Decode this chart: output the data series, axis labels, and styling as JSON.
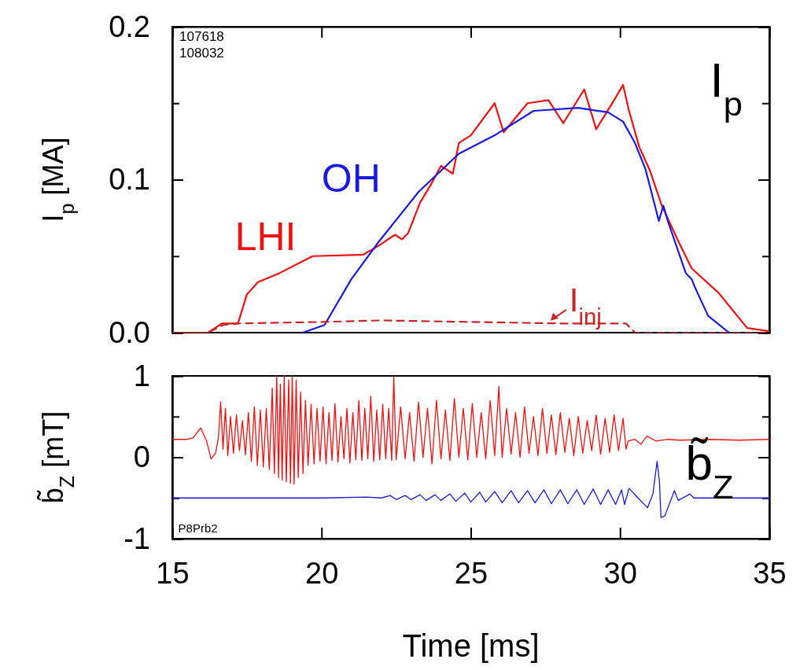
{
  "chart_data": [
    {
      "type": "line",
      "ylabel": "I$_{p}$ [MA]",
      "xlim": [
        15,
        35
      ],
      "xticks": [
        15,
        20,
        25,
        30,
        35
      ],
      "ylim": [
        0,
        0.2
      ],
      "yticks": [
        {
          "value": 0,
          "label": "0.0"
        },
        {
          "value": 0.05,
          "label": null
        },
        {
          "value": 0.1,
          "label": "0.1"
        },
        {
          "value": 0.15,
          "label": null
        },
        {
          "value": 0.2,
          "label": "0.2"
        }
      ],
      "tick_labels": "y",
      "marker": "none",
      "annotations": [
        "107618",
        "108032",
        "I$_{p}$"
      ],
      "series": [
        {
          "name": "LHI",
          "color": "#ee1111",
          "line_style": "solid",
          "x": [
            15,
            16.2,
            16.66,
            17.2,
            17.5,
            17.87,
            18.6,
            19.3,
            19.7,
            21.4,
            21.93,
            22.46,
            22.7,
            22.9,
            23.3,
            23.67,
            24.0,
            24.4,
            24.6,
            25.0,
            25.8,
            26.1,
            26.9,
            27.6,
            28.1,
            28.8,
            29.2,
            29.8,
            30.1,
            30.3,
            30.65,
            31.0,
            31.4,
            31.97,
            32.4,
            33.3,
            33.8,
            34.26,
            35
          ],
          "values": [
            0,
            0,
            0.006,
            0.006,
            0.025,
            0.033,
            0.039,
            0.046,
            0.05,
            0.051,
            0.057,
            0.064,
            0.061,
            0.065,
            0.085,
            0.097,
            0.109,
            0.104,
            0.124,
            0.129,
            0.15,
            0.131,
            0.15,
            0.152,
            0.137,
            0.159,
            0.133,
            0.152,
            0.162,
            0.145,
            0.121,
            0.106,
            0.083,
            0.059,
            0.042,
            0.026,
            0.014,
            0.003,
            0.001
          ]
        },
        {
          "name": "OH",
          "color": "#1a1adf",
          "line_style": "solid",
          "x": [
            19.37,
            20.1,
            21.0,
            21.9,
            23.25,
            24.6,
            25.8,
            27.1,
            28.6,
            29.6,
            30.1,
            30.5,
            30.85,
            31.3,
            31.45,
            31.6,
            32.2,
            32.4,
            32.5,
            32.95,
            33.65
          ],
          "values": [
            0,
            0.005,
            0.035,
            0.059,
            0.092,
            0.117,
            0.129,
            0.145,
            0.147,
            0.144,
            0.138,
            0.124,
            0.107,
            0.073,
            0.083,
            0.073,
            0.039,
            0.035,
            0.03,
            0.011,
            0
          ]
        },
        {
          "name": "I$_{inj}$",
          "color": "#cc2222",
          "line_style": "dashed",
          "x": [
            15,
            16.2,
            16.7,
            17.2,
            20,
            22,
            25,
            28,
            30.2,
            30.5,
            35
          ],
          "values": [
            0,
            0,
            0.005,
            0.006,
            0.007,
            0.008,
            0.007,
            0.006,
            0.006,
            0,
            0
          ]
        }
      ]
    },
    {
      "type": "line",
      "ylabel": "b̃$_{Z}$ [mT]",
      "xlabel": "Time [ms]",
      "xlim": [
        15,
        35
      ],
      "xticks": [
        15,
        20,
        25,
        30,
        35
      ],
      "ylim": [
        -1,
        1
      ],
      "yticks": [
        -1,
        {
          "value": -0.5,
          "label": null
        },
        0,
        {
          "value": 0.5,
          "label": null
        },
        1
      ],
      "marker": "none",
      "annotations": [
        "b̃$_{Z}$",
        "P8Prb2"
      ],
      "series": [
        {
          "color": "#ee1111",
          "line_style": "solid",
          "x": [
            15.0,
            15.5,
            15.7,
            15.95,
            16.15,
            16.3,
            16.45,
            16.55,
            16.62,
            16.7,
            16.78,
            16.86,
            16.95,
            17.05,
            17.15,
            17.25,
            17.35,
            17.45,
            17.55,
            17.65,
            17.75,
            17.85,
            17.95,
            18.05,
            18.15,
            18.25,
            18.35,
            18.42,
            18.5,
            18.56,
            18.62,
            18.68,
            18.75,
            18.82,
            18.9,
            18.96,
            19.02,
            19.08,
            19.15,
            19.22,
            19.3,
            19.38,
            19.46,
            19.55,
            19.65,
            19.75,
            19.85,
            19.95,
            20.05,
            20.15,
            20.25,
            20.35,
            20.45,
            20.55,
            20.65,
            20.75,
            20.85,
            20.95,
            21.05,
            21.15,
            21.25,
            21.35,
            21.45,
            21.55,
            21.65,
            21.75,
            21.85,
            21.95,
            22.05,
            22.15,
            22.25,
            22.35,
            22.42,
            22.5,
            22.65,
            22.8,
            22.95,
            23.1,
            23.25,
            23.4,
            23.55,
            23.7,
            23.85,
            24.0,
            24.15,
            24.3,
            24.45,
            24.6,
            24.75,
            24.9,
            25.05,
            25.2,
            25.35,
            25.5,
            25.65,
            25.8,
            25.94,
            26.05,
            26.2,
            26.35,
            26.5,
            26.65,
            26.8,
            26.95,
            27.1,
            27.25,
            27.4,
            27.55,
            27.7,
            27.85,
            28.0,
            28.15,
            28.3,
            28.45,
            28.6,
            28.75,
            28.9,
            29.05,
            29.2,
            29.35,
            29.5,
            29.65,
            29.8,
            29.95,
            30.1,
            30.2,
            30.27,
            30.5,
            30.7,
            30.9,
            31.2,
            31.6,
            32,
            33,
            34,
            35
          ],
          "values": [
            0.22,
            0.22,
            0.24,
            0.36,
            0.2,
            -0.02,
            0.05,
            0.25,
            0.68,
            0.1,
            0.6,
            0.02,
            0.5,
            0.05,
            0.52,
            0.08,
            0.45,
            0.03,
            0.55,
            -0.05,
            0.62,
            -0.1,
            0.58,
            -0.12,
            0.6,
            -0.15,
            0.85,
            -0.2,
            1.0,
            -0.25,
            0.9,
            -0.28,
            1.0,
            -0.3,
            0.95,
            -0.32,
            1.0,
            -0.33,
            0.95,
            -0.25,
            0.8,
            -0.2,
            0.7,
            -0.1,
            0.65,
            -0.08,
            0.6,
            -0.05,
            0.62,
            -0.08,
            0.55,
            -0.04,
            0.66,
            -0.06,
            0.5,
            -0.02,
            0.6,
            -0.07,
            0.55,
            -0.03,
            0.7,
            -0.04,
            0.6,
            -0.02,
            0.75,
            -0.05,
            0.58,
            -0.03,
            0.65,
            -0.02,
            0.6,
            -0.04,
            0.99,
            -0.03,
            0.62,
            -0.02,
            0.55,
            -0.05,
            0.68,
            0.0,
            0.6,
            -0.08,
            0.7,
            -0.02,
            0.58,
            -0.04,
            0.72,
            0.0,
            0.6,
            -0.03,
            0.66,
            0.0,
            0.55,
            -0.02,
            0.7,
            0.02,
            0.87,
            0.0,
            0.6,
            0.04,
            0.55,
            0.0,
            0.62,
            0.05,
            0.5,
            0.02,
            0.6,
            0.05,
            0.52,
            0.03,
            0.55,
            0.06,
            0.48,
            0.02,
            0.5,
            0.05,
            0.45,
            0.08,
            0.52,
            0.04,
            0.48,
            0.06,
            0.52,
            0.08,
            0.48,
            0.1,
            0.2,
            0.22,
            0.16,
            0.26,
            0.2,
            0.22,
            0.21,
            0.22,
            0.21,
            0.22
          ]
        },
        {
          "color": "#1a1adf",
          "line_style": "solid",
          "x": [
            15,
            18,
            20,
            21.5,
            22.0,
            22.3,
            22.5,
            22.8,
            23.0,
            23.3,
            23.5,
            23.8,
            24.0,
            24.3,
            24.5,
            24.8,
            25.0,
            25.3,
            25.5,
            25.8,
            26.05,
            26.35,
            26.6,
            26.9,
            27.15,
            27.45,
            27.7,
            28.0,
            28.25,
            28.55,
            28.8,
            29.1,
            29.35,
            29.6,
            29.85,
            30.05,
            30.15,
            30.3,
            30.6,
            30.92,
            31.1,
            31.24,
            31.32,
            31.37,
            31.5,
            31.82,
            31.95,
            32.2,
            32.34,
            32.47,
            33,
            35
          ],
          "values": [
            -0.5,
            -0.5,
            -0.5,
            -0.49,
            -0.5,
            -0.47,
            -0.52,
            -0.47,
            -0.52,
            -0.46,
            -0.53,
            -0.46,
            -0.53,
            -0.45,
            -0.54,
            -0.44,
            -0.55,
            -0.43,
            -0.55,
            -0.42,
            -0.56,
            -0.41,
            -0.56,
            -0.41,
            -0.56,
            -0.4,
            -0.57,
            -0.4,
            -0.57,
            -0.4,
            -0.58,
            -0.39,
            -0.58,
            -0.4,
            -0.58,
            -0.4,
            -0.58,
            -0.38,
            -0.5,
            -0.62,
            -0.45,
            -0.05,
            -0.3,
            -0.74,
            -0.72,
            -0.41,
            -0.53,
            -0.48,
            -0.45,
            -0.5,
            -0.5,
            -0.5
          ]
        }
      ]
    }
  ]
}
